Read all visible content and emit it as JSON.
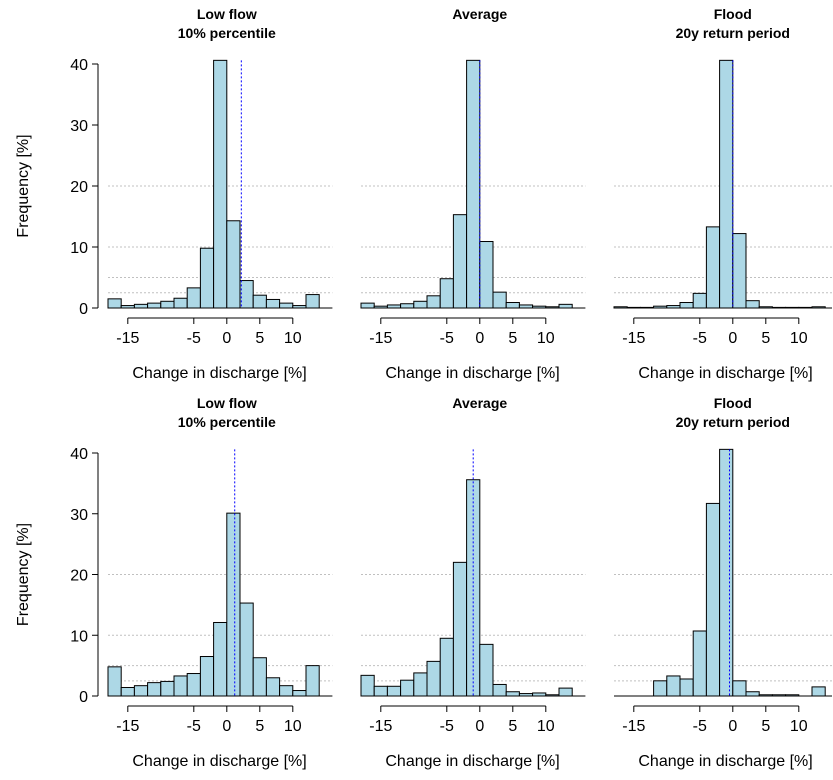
{
  "chart_data": [
    {
      "type": "bar",
      "title": [
        "Low flow",
        "10% percentile"
      ],
      "xlabel": "Change in discharge [%]",
      "ylabel": "Frequency [%]",
      "xticks": [
        "-15",
        "-5",
        "0",
        "5",
        "10"
      ],
      "yticks": [
        "0",
        "10",
        "20",
        "30",
        "40"
      ],
      "xlim": [
        -18,
        16
      ],
      "ylim": [
        0,
        40
      ],
      "categories": [
        "-16",
        "-14",
        "-12",
        "-10",
        "-8",
        "-6",
        "-4",
        "-2",
        "0",
        "2",
        "4",
        "6",
        "8",
        "10",
        "12",
        "14"
      ],
      "values": [
        1.5,
        0.4,
        0.6,
        0.8,
        1.1,
        1.6,
        3.3,
        9.8,
        41,
        14.3,
        4.5,
        2.1,
        1.4,
        0.8,
        0.4,
        2.2
      ],
      "mean_line": 2.2
    },
    {
      "type": "bar",
      "title": [
        "Average"
      ],
      "xlabel": "Change in discharge [%]",
      "xticks": [
        "-15",
        "-5",
        "0",
        "5",
        "10"
      ],
      "xlim": [
        -18,
        16
      ],
      "ylim": [
        0,
        40
      ],
      "categories": [
        "-16",
        "-14",
        "-12",
        "-10",
        "-8",
        "-6",
        "-4",
        "-2",
        "0",
        "2",
        "4",
        "6",
        "8",
        "10",
        "12",
        "14"
      ],
      "values": [
        0.8,
        0.3,
        0.5,
        0.7,
        1.1,
        2.0,
        4.8,
        15.3,
        41,
        10.9,
        2.6,
        0.9,
        0.5,
        0.3,
        0.2,
        0.6
      ],
      "mean_line": 0.0
    },
    {
      "type": "bar",
      "title": [
        "Flood",
        "20y return period"
      ],
      "xlabel": "Change in discharge [%]",
      "xticks": [
        "-15",
        "-5",
        "0",
        "5",
        "10"
      ],
      "xlim": [
        -18,
        16
      ],
      "ylim": [
        0,
        40
      ],
      "categories": [
        "-16",
        "-14",
        "-12",
        "-10",
        "-8",
        "-6",
        "-4",
        "-2",
        "0",
        "2",
        "4",
        "6",
        "8",
        "10",
        "12",
        "14"
      ],
      "values": [
        0.2,
        0.1,
        0.1,
        0.3,
        0.4,
        0.9,
        2.4,
        13.3,
        41,
        12.2,
        1.2,
        0.2,
        0.1,
        0.1,
        0.1,
        0.2
      ],
      "mean_line": 0.0
    },
    {
      "type": "bar",
      "title": [
        "Low flow",
        "10% percentile"
      ],
      "xlabel": "Change in discharge [%]",
      "ylabel": "Frequency [%]",
      "xticks": [
        "-15",
        "-5",
        "0",
        "5",
        "10"
      ],
      "yticks": [
        "0",
        "10",
        "20",
        "30",
        "40"
      ],
      "xlim": [
        -18,
        16
      ],
      "ylim": [
        0,
        40
      ],
      "categories": [
        "-16",
        "-14",
        "-12",
        "-10",
        "-8",
        "-6",
        "-4",
        "-2",
        "0",
        "2",
        "4",
        "6",
        "8",
        "10",
        "12",
        "14"
      ],
      "values": [
        4.8,
        1.4,
        1.7,
        2.2,
        2.4,
        3.3,
        3.7,
        6.5,
        12.1,
        30.1,
        15.3,
        6.3,
        3.0,
        1.7,
        0.9,
        5.0
      ],
      "mean_line": 1.2
    },
    {
      "type": "bar",
      "title": [
        "Average"
      ],
      "xlabel": "Change in discharge [%]",
      "xticks": [
        "-15",
        "-5",
        "0",
        "5",
        "10"
      ],
      "xlim": [
        -18,
        16
      ],
      "ylim": [
        0,
        40
      ],
      "categories": [
        "-16",
        "-14",
        "-12",
        "-10",
        "-8",
        "-6",
        "-4",
        "-2",
        "0",
        "2",
        "4",
        "6",
        "8",
        "10",
        "12",
        "14"
      ],
      "values": [
        3.4,
        1.6,
        1.6,
        2.6,
        3.8,
        5.7,
        9.5,
        22.0,
        35.6,
        8.5,
        1.9,
        0.7,
        0.4,
        0.5,
        0.2,
        1.3
      ],
      "mean_line": -1.0
    },
    {
      "type": "bar",
      "title": [
        "Flood",
        "20y return period"
      ],
      "xlabel": "Change in discharge [%]",
      "xticks": [
        "-15",
        "-5",
        "0",
        "5",
        "10"
      ],
      "xlim": [
        -18,
        16
      ],
      "ylim": [
        0,
        40
      ],
      "categories": [
        "-16",
        "-14",
        "-12",
        "-10",
        "-8",
        "-6",
        "-4",
        "-2",
        "0",
        "2",
        "4",
        "6",
        "8",
        "10",
        "12",
        "14"
      ],
      "values": [
        0,
        0,
        0,
        2.5,
        3.3,
        2.8,
        10.7,
        31.7,
        41,
        2.5,
        0.7,
        0.2,
        0.2,
        0.2,
        0,
        1.5
      ],
      "mean_line": -0.5
    }
  ],
  "style": {
    "bar_fill": "#add8e6",
    "bar_stroke": "#000000",
    "mean_line_color": "#0000ff",
    "grid_color": "#c0c0c0"
  }
}
